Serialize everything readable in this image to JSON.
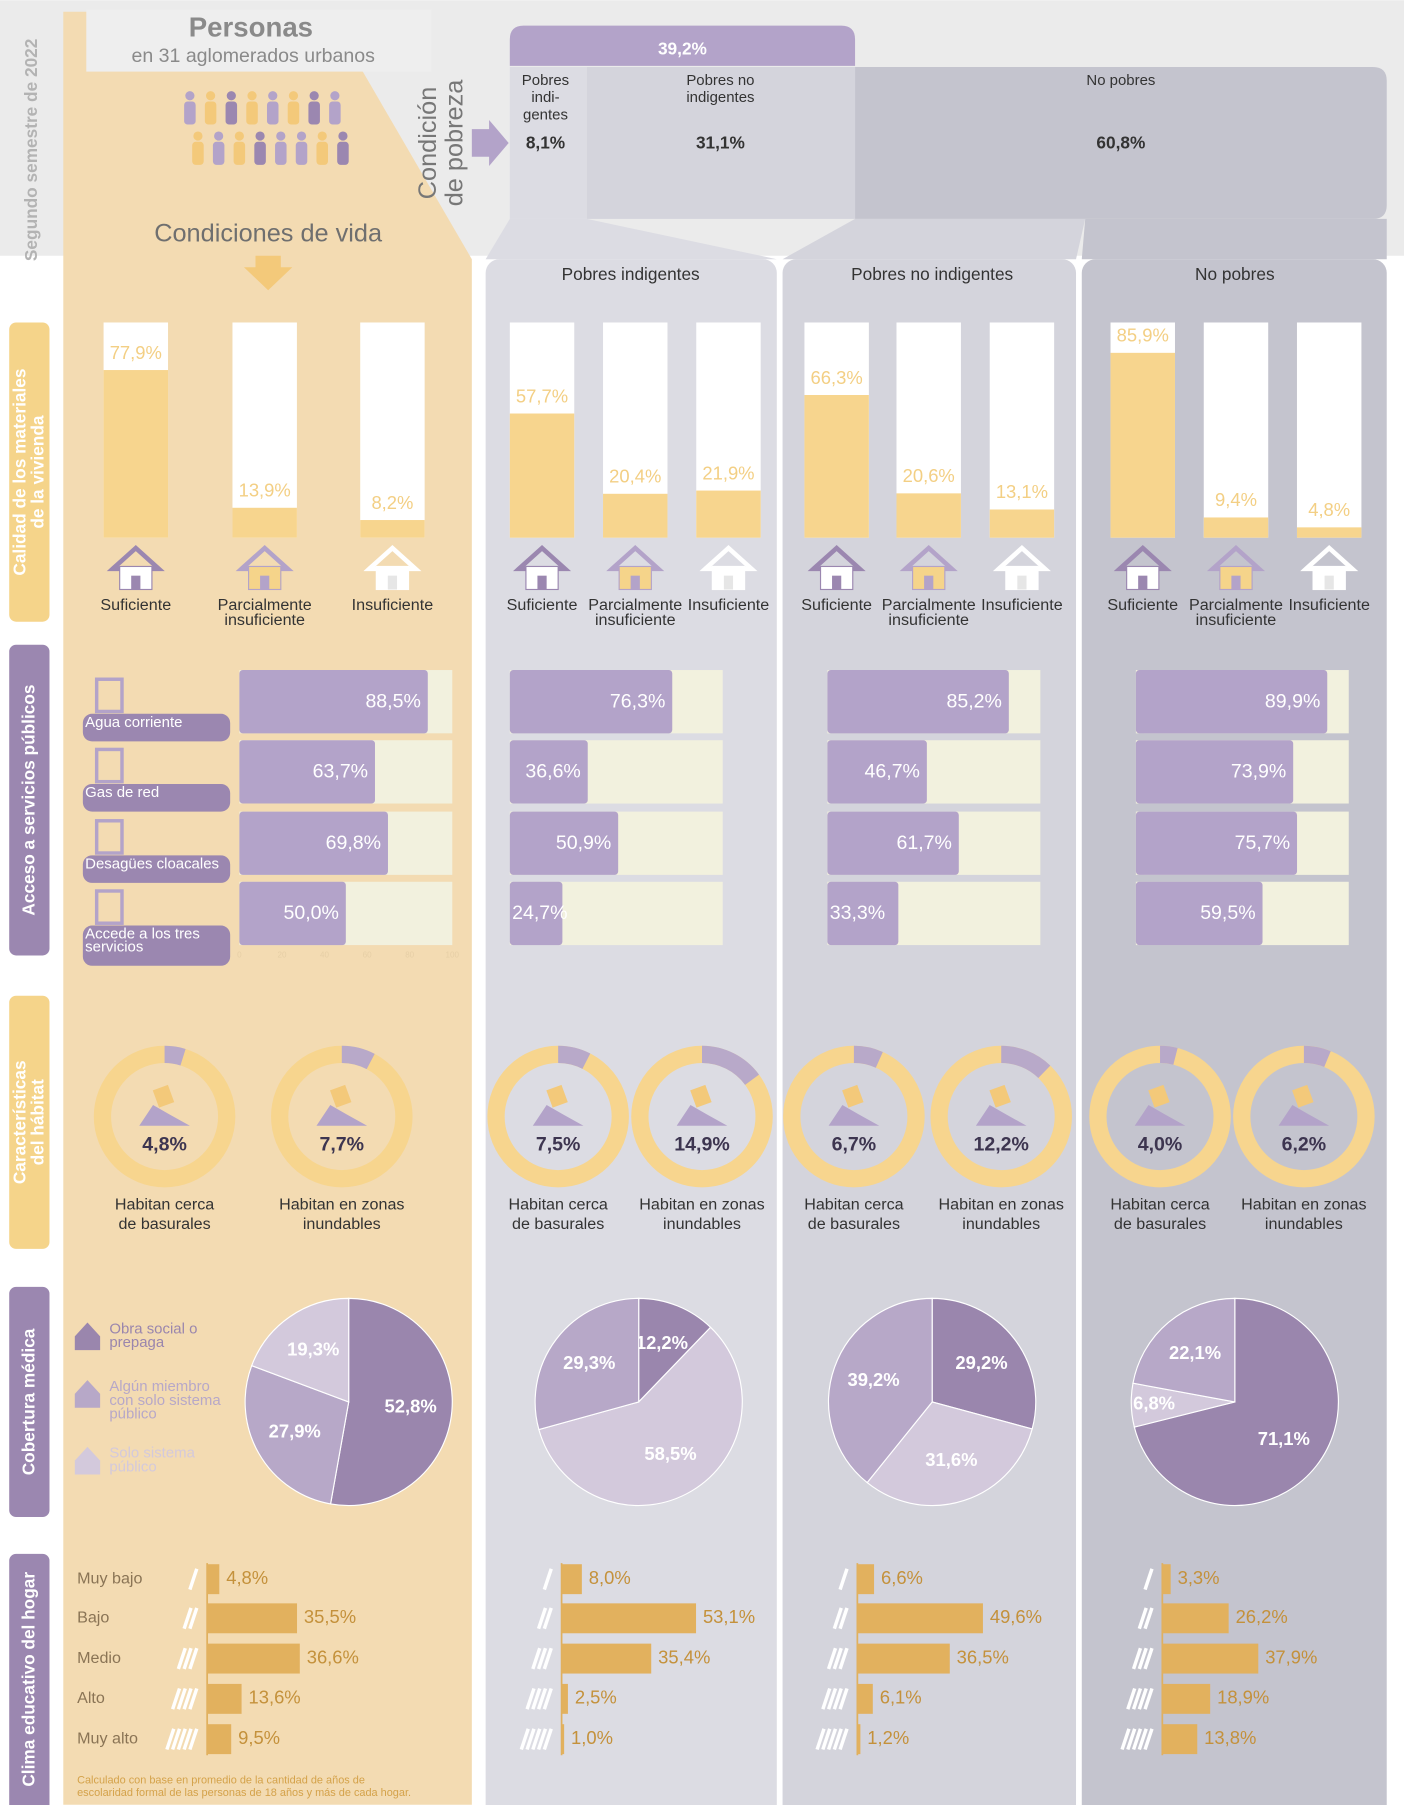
{
  "sidebar": {
    "period": "Segundo semestre de 2022",
    "sections": [
      [
        "Calidad de los materiales",
        "de la vivienda"
      ],
      [
        "Acceso a servicios públicos"
      ],
      [
        "Características",
        "del hábitat"
      ],
      [
        "Cobertura médica"
      ],
      [
        "Clima educativo del hogar"
      ]
    ]
  },
  "header": {
    "title": "Personas",
    "subtitle": "en 31 aglomerados urbanos",
    "living_conditions": "Condiciones de vida",
    "poverty_condition": [
      "Condición",
      "de pobreza"
    ]
  },
  "poverty": {
    "poor_total": {
      "value": 39.2,
      "label": "39,2%"
    },
    "groups": [
      {
        "name": [
          "Pobres",
          "indi-",
          "gentes"
        ],
        "value": 8.1,
        "label": "8,1%"
      },
      {
        "name": [
          "Pobres no",
          "indigentes"
        ],
        "value": 31.1,
        "label": "31,1%"
      },
      {
        "name": [
          "No pobres"
        ],
        "value": 60.8,
        "label": "60,8%"
      }
    ]
  },
  "housing_categories": [
    [
      "Suficiente"
    ],
    [
      "Parcialmente",
      "insuficiente"
    ],
    [
      "Insuficiente"
    ]
  ],
  "service_categories": [
    [
      "Agua corriente"
    ],
    [
      "Gas de red"
    ],
    [
      "Desagües cloacales"
    ],
    [
      "Accede a los tres",
      "servicios"
    ]
  ],
  "service_ticks": [
    0,
    20,
    40,
    60,
    80,
    100
  ],
  "habitat_categories": [
    [
      "Habitan cerca",
      "de basurales"
    ],
    [
      "Habitan en zonas",
      "inundables"
    ]
  ],
  "health_legend": [
    {
      "name": [
        "Obra social o",
        "prepaga"
      ],
      "color": "#9a86ad"
    },
    {
      "name": [
        "Algún miembro",
        "con solo sistema",
        "público"
      ],
      "color": "#b7a8c8"
    },
    {
      "name": [
        "Solo sistema",
        "público"
      ],
      "color": "#d3c9dc"
    }
  ],
  "education_categories": [
    "Muy bajo",
    "Bajo",
    "Medio",
    "Alto",
    "Muy alto"
  ],
  "education_note": [
    "Calculado con base en promedio de la cantidad de años de",
    "escolaridad formal de las personas de 18 años y más de cada hogar."
  ],
  "columns": [
    {
      "housing": {
        "values": [
          77.9,
          13.9,
          8.2
        ],
        "value_labels": [
          "77,9%",
          "13,9%",
          "8,2%"
        ]
      },
      "services": {
        "values": [
          88.5,
          63.7,
          69.8,
          50.0
        ],
        "value_labels": [
          "88,5%",
          "63,7%",
          "69,8%",
          "50,0%"
        ]
      },
      "habitat": {
        "values": [
          4.8,
          7.7
        ],
        "value_labels": [
          "4,8%",
          "7,7%"
        ]
      },
      "health": {
        "values": [
          52.8,
          27.9,
          19.3
        ],
        "value_labels": [
          "52,8%",
          "27,9%",
          "19,3%"
        ],
        "colors": [
          "#9a86ad",
          "#b7a8c8",
          "#d3c9dc"
        ]
      },
      "education": {
        "values": [
          4.8,
          35.5,
          36.6,
          13.6,
          9.5
        ],
        "value_labels": [
          "4,8%",
          "35,5%",
          "36,6%",
          "13,6%",
          "9,5%"
        ]
      }
    },
    {
      "name": "Pobres indigentes",
      "housing": {
        "values": [
          57.7,
          20.4,
          21.9
        ],
        "value_labels": [
          "57,7%",
          "20,4%",
          "21,9%"
        ]
      },
      "services": {
        "values": [
          76.3,
          36.6,
          50.9,
          24.7
        ],
        "value_labels": [
          "76,3%",
          "36,6%",
          "50,9%",
          "24,7%"
        ]
      },
      "habitat": {
        "values": [
          7.5,
          14.9
        ],
        "value_labels": [
          "7,5%",
          "14,9%"
        ]
      },
      "health": {
        "values": [
          12.2,
          58.5,
          29.3
        ],
        "value_labels": [
          "12,2%",
          "58,5%",
          "29,3%"
        ],
        "colors": [
          "#9a86ad",
          "#d3c9dc",
          "#b7a8c8"
        ]
      },
      "education": {
        "values": [
          8.0,
          53.1,
          35.4,
          2.5,
          1.0
        ],
        "value_labels": [
          "8,0%",
          "53,1%",
          "35,4%",
          "2,5%",
          "1,0%"
        ]
      }
    },
    {
      "name": "Pobres no indigentes",
      "housing": {
        "values": [
          66.3,
          20.6,
          13.1
        ],
        "value_labels": [
          "66,3%",
          "20,6%",
          "13,1%"
        ]
      },
      "services": {
        "values": [
          85.2,
          46.7,
          61.7,
          33.3
        ],
        "value_labels": [
          "85,2%",
          "46,7%",
          "61,7%",
          "33,3%"
        ]
      },
      "habitat": {
        "values": [
          6.7,
          12.2
        ],
        "value_labels": [
          "6,7%",
          "12,2%"
        ]
      },
      "health": {
        "values": [
          29.2,
          31.6,
          39.2
        ],
        "value_labels": [
          "29,2%",
          "31,6%",
          "39,2%"
        ],
        "colors": [
          "#9a86ad",
          "#d3c9dc",
          "#b7a8c8"
        ]
      },
      "education": {
        "values": [
          6.6,
          49.6,
          36.5,
          6.1,
          1.2
        ],
        "value_labels": [
          "6,6%",
          "49,6%",
          "36,5%",
          "6,1%",
          "1,2%"
        ]
      }
    },
    {
      "name": "No pobres",
      "housing": {
        "values": [
          85.9,
          9.4,
          4.8
        ],
        "value_labels": [
          "85,9%",
          "9,4%",
          "4,8%"
        ]
      },
      "services": {
        "values": [
          89.9,
          73.9,
          75.7,
          59.5
        ],
        "value_labels": [
          "89,9%",
          "73,9%",
          "75,7%",
          "59,5%"
        ]
      },
      "habitat": {
        "values": [
          4.0,
          6.2
        ],
        "value_labels": [
          "4,0%",
          "6,2%"
        ]
      },
      "health": {
        "values": [
          71.1,
          6.8,
          22.1
        ],
        "value_labels": [
          "71,1%",
          "6,8%",
          "22,1%"
        ],
        "colors": [
          "#9a86ad",
          "#d3c9dc",
          "#b7a8c8"
        ]
      },
      "education": {
        "values": [
          3.3,
          26.2,
          37.9,
          18.9,
          13.8
        ],
        "value_labels": [
          "3,3%",
          "26,2%",
          "37,9%",
          "18,9%",
          "13,8%"
        ]
      }
    }
  ]
}
